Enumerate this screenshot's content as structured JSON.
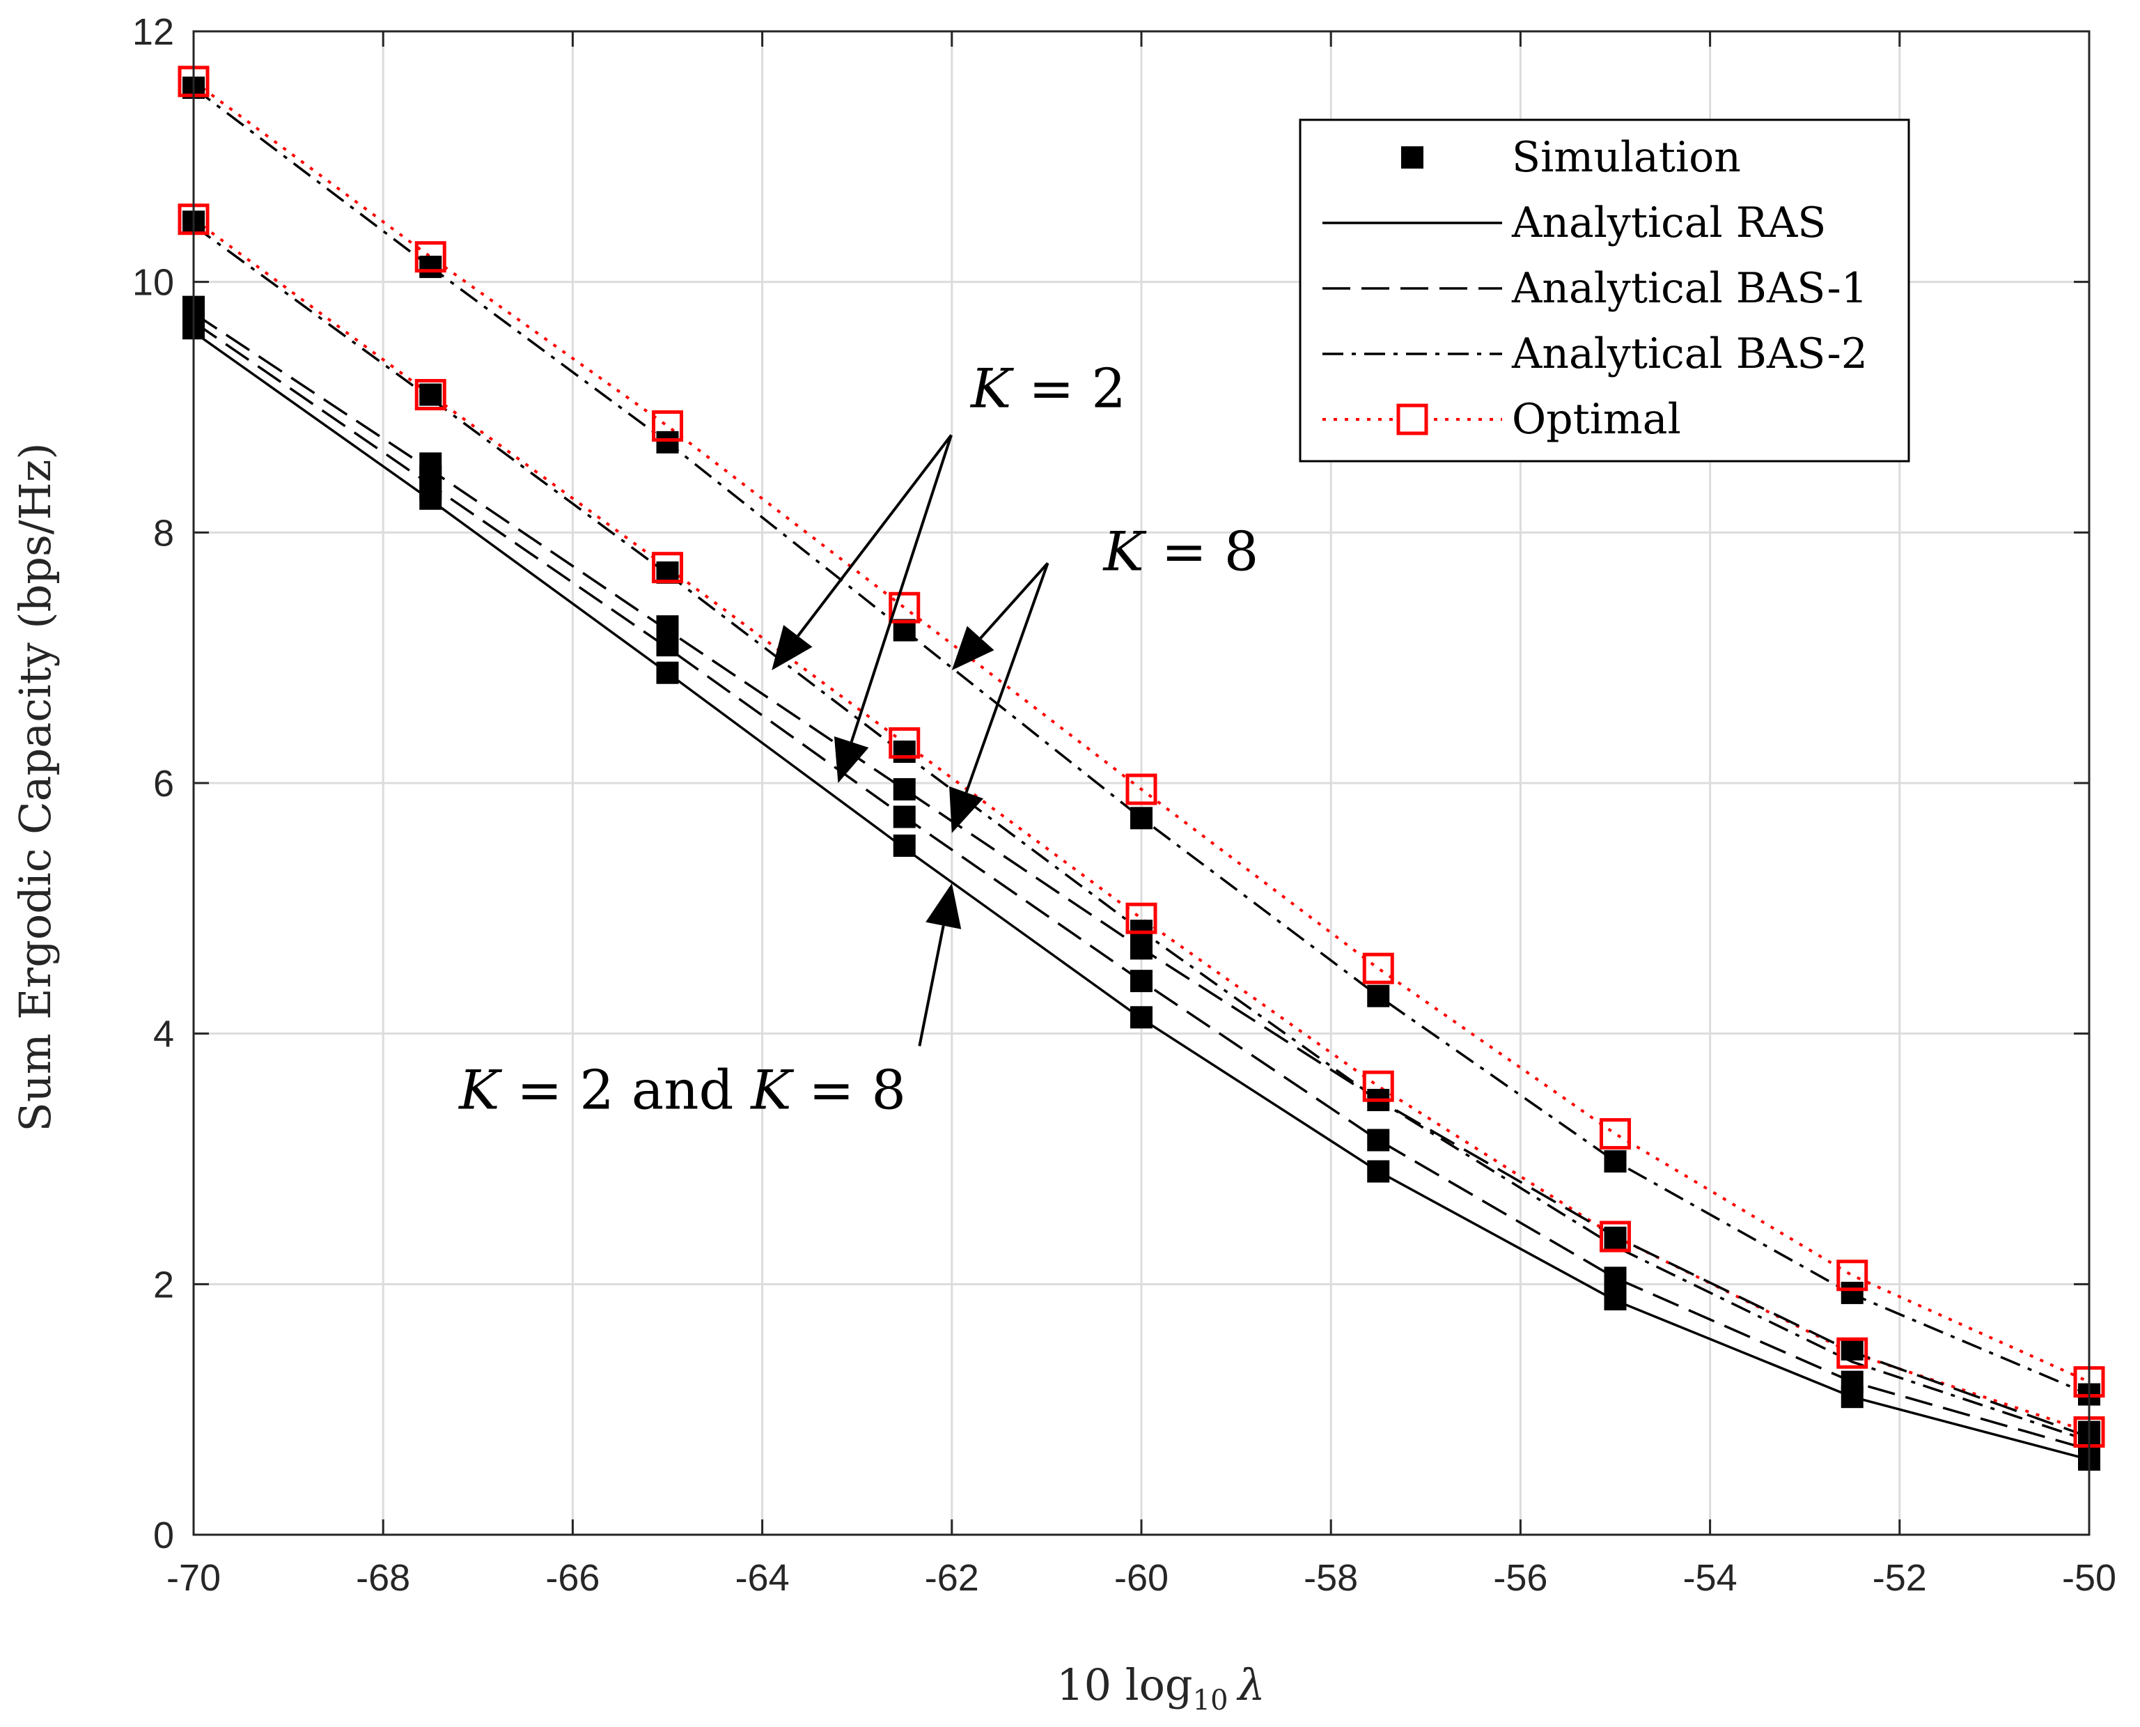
{
  "colors": {
    "grid": "#dcdcdc",
    "axis": "#262626",
    "optimal": "#ff0000",
    "analytical": "#000000"
  },
  "chart_data": {
    "type": "line",
    "title": "",
    "xlabel": "10 log",
    "xlabel_sub": "10",
    "xlabel_symbol": "λ",
    "ylabel": "Sum Ergodic Capacity (bps/Hz)",
    "xlim": [
      -70,
      -50
    ],
    "ylim": [
      0,
      12
    ],
    "xticks": [
      -70,
      -68,
      -66,
      -64,
      -62,
      -60,
      -58,
      -56,
      -54,
      -52,
      -50
    ],
    "yticks": [
      0,
      2,
      4,
      6,
      8,
      10,
      12
    ],
    "grid": true,
    "legend_position": "top-right",
    "legend": [
      "Simulation",
      "Analytical RAS",
      "Analytical BAS-1",
      "Analytical BAS-2",
      "Optimal"
    ],
    "x": [
      -70,
      -67.5,
      -65,
      -62.5,
      -60,
      -57.5,
      -55,
      -52.5,
      -50
    ],
    "series": [
      {
        "name": "Optimal K=8",
        "style": "optimal",
        "values": [
          11.6,
          10.2,
          8.85,
          7.4,
          5.95,
          4.52,
          3.2,
          2.07,
          1.22
        ]
      },
      {
        "name": "Analytical BAS-2 K=8",
        "style": "dashdot",
        "values": [
          11.55,
          10.12,
          8.72,
          7.22,
          5.72,
          4.3,
          2.98,
          1.92,
          1.12
        ]
      },
      {
        "name": "Optimal K=2",
        "style": "optimal",
        "values": [
          10.5,
          9.1,
          7.72,
          6.32,
          4.92,
          3.58,
          2.38,
          1.45,
          0.82
        ]
      },
      {
        "name": "Analytical BAS-2 K=2",
        "style": "dashdot",
        "values": [
          10.45,
          9.07,
          7.67,
          6.23,
          4.82,
          3.47,
          2.3,
          1.38,
          0.75
        ]
      },
      {
        "name": "Analytical BAS-1",
        "style": "dashed",
        "values": [
          9.75,
          8.5,
          7.22,
          5.95,
          4.68,
          3.47,
          2.38,
          1.46,
          0.78
        ]
      },
      {
        "name": "Analytical BAS-1 (K=2)",
        "style": "dashed",
        "values": [
          9.68,
          8.38,
          7.08,
          5.73,
          4.42,
          3.15,
          2.05,
          1.22,
          0.68
        ]
      },
      {
        "name": "Analytical RAS",
        "style": "solid",
        "values": [
          9.6,
          8.26,
          6.88,
          5.48,
          4.12,
          2.9,
          1.87,
          1.1,
          0.6
        ]
      }
    ],
    "simulation_points": [
      [
        -70,
        11.55
      ],
      [
        -70,
        10.48
      ],
      [
        -70,
        9.8
      ],
      [
        -70,
        9.7
      ],
      [
        -70,
        9.63
      ],
      [
        -67.5,
        10.12
      ],
      [
        -67.5,
        9.1
      ],
      [
        -67.5,
        8.55
      ],
      [
        -67.5,
        8.45
      ],
      [
        -67.5,
        8.35
      ],
      [
        -67.5,
        8.27
      ],
      [
        -65,
        8.72
      ],
      [
        -65,
        7.68
      ],
      [
        -65,
        7.25
      ],
      [
        -65,
        7.1
      ],
      [
        -65,
        6.88
      ],
      [
        -62.5,
        7.22
      ],
      [
        -62.5,
        6.25
      ],
      [
        -62.5,
        5.95
      ],
      [
        -62.5,
        5.73
      ],
      [
        -62.5,
        5.5
      ],
      [
        -60,
        5.72
      ],
      [
        -60,
        4.82
      ],
      [
        -60,
        4.68
      ],
      [
        -60,
        4.42
      ],
      [
        -60,
        4.13
      ],
      [
        -57.5,
        4.3
      ],
      [
        -57.5,
        3.47
      ],
      [
        -57.5,
        3.15
      ],
      [
        -57.5,
        2.9
      ],
      [
        -55,
        2.98
      ],
      [
        -55,
        2.37
      ],
      [
        -55,
        2.05
      ],
      [
        -55,
        1.88
      ],
      [
        -52.5,
        1.93
      ],
      [
        -52.5,
        1.48
      ],
      [
        -52.5,
        1.22
      ],
      [
        -52.5,
        1.1
      ],
      [
        -50,
        1.12
      ],
      [
        -50,
        0.82
      ],
      [
        -50,
        0.75
      ],
      [
        -50,
        0.6
      ]
    ],
    "annotations": [
      {
        "text_var": "K",
        "text_rest": " = 2",
        "at": [
          -61.8,
          9.0
        ],
        "arrows_to": [
          [
            -63.9,
            6.9
          ],
          [
            -63.2,
            6.0
          ]
        ]
      },
      {
        "text_var": "K",
        "text_rest": " = 8",
        "at": [
          -60.4,
          7.7
        ],
        "arrows_to": [
          [
            -62.0,
            6.9
          ],
          [
            -62.0,
            5.6
          ]
        ]
      },
      {
        "text_var": "K",
        "text_rest": " = 2 and ",
        "text_var2": "K",
        "text_rest2": " = 8",
        "at": [
          -67.2,
          3.4
        ],
        "arrows_to": [
          [
            -62.0,
            5.2
          ]
        ]
      }
    ]
  }
}
